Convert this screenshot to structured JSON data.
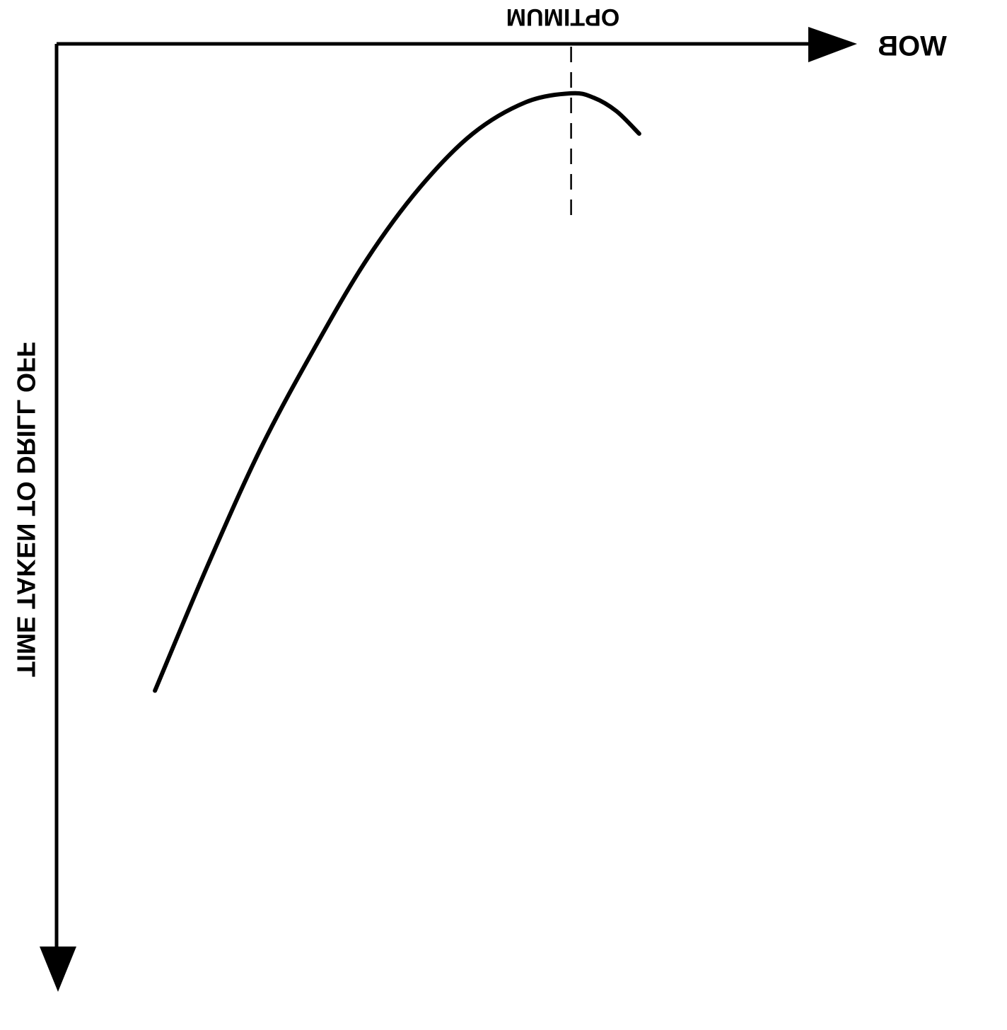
{
  "chart_data": {
    "type": "line",
    "title": "",
    "xlabel": "WOB",
    "ylabel": "TIME TAKEN TO DRILL OFF",
    "annotation": "OPTIMUM",
    "grid": false,
    "legend": "none",
    "xlim": [
      0,
      1
    ],
    "ylim": [
      0,
      1
    ],
    "series": [
      {
        "x": [
          0.13,
          0.2,
          0.27,
          0.34,
          0.41,
          0.48,
          0.55,
          0.62,
          0.68,
          0.71,
          0.74,
          0.77
        ],
        "y": [
          0.28,
          0.42,
          0.55,
          0.66,
          0.76,
          0.84,
          0.9,
          0.935,
          0.945,
          0.94,
          0.925,
          0.9
        ]
      }
    ],
    "optimum_x": 0.68,
    "colors": {
      "line": "#000000",
      "axis": "#000000",
      "background": "#ffffff"
    }
  }
}
